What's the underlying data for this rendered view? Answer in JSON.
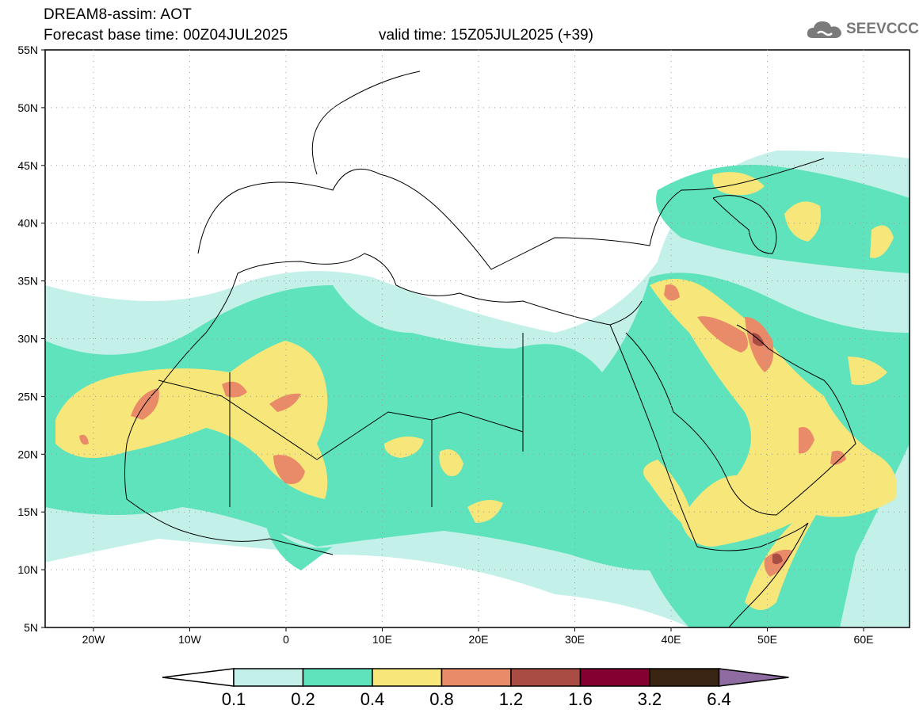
{
  "header": {
    "title": "DREAM8-assim: AOT",
    "base_time": "Forecast base time: 00Z04JUL2025",
    "valid_time": "valid time: 15Z05JUL2025 (+39)"
  },
  "logo": {
    "text": "SEEVCCC"
  },
  "axes": {
    "lat_labels": [
      "55N",
      "50N",
      "45N",
      "40N",
      "35N",
      "30N",
      "25N",
      "20N",
      "15N",
      "10N",
      "5N"
    ],
    "lon_labels": [
      "20W",
      "10W",
      "0",
      "10E",
      "20E",
      "30E",
      "40E",
      "50E",
      "60E"
    ]
  },
  "colorbar": {
    "thresholds": [
      "0.1",
      "0.2",
      "0.4",
      "0.8",
      "1.2",
      "1.6",
      "3.2",
      "6.4"
    ],
    "colors": [
      "#ffffff",
      "#c4f0ea",
      "#5ee3bc",
      "#f7e77a",
      "#e98a68",
      "#a94c44",
      "#840030",
      "#3a2414",
      "#8e6ba0"
    ]
  }
}
